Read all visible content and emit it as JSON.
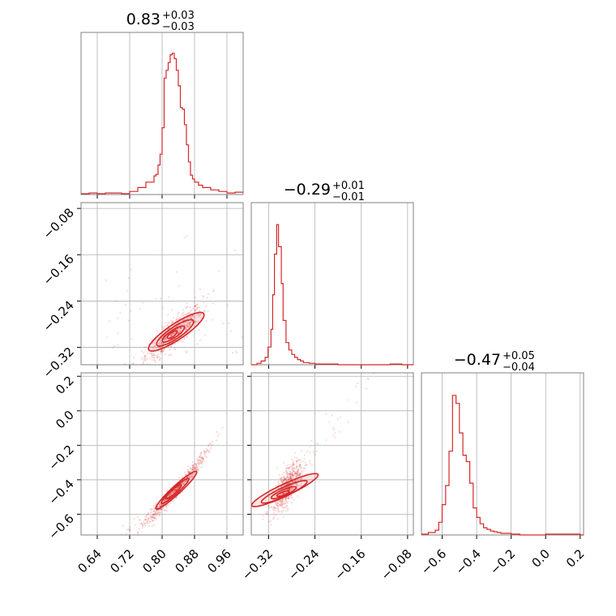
{
  "chart_data": {
    "type": "corner",
    "colors": {
      "series": "#d62728",
      "grid": "#b0b0b0",
      "frame": "#808080"
    },
    "grid": true,
    "titles": [
      {
        "value": "0.83",
        "plus": "+0.03",
        "minus": "−0.03"
      },
      {
        "value": "−0.29",
        "plus": "+0.01",
        "minus": "−0.01"
      },
      {
        "value": "−0.47",
        "plus": "+0.05",
        "minus": "−0.04"
      }
    ],
    "parameters": [
      {
        "range": [
          0.6,
          1.0
        ],
        "ticks": [
          0.64,
          0.72,
          0.8,
          0.88,
          0.96
        ],
        "tick_labels": [
          "0.64",
          "0.72",
          "0.80",
          "0.88",
          "0.96"
        ],
        "histogram": {
          "bin_edges": [
            0.6,
            0.62,
            0.64,
            0.66,
            0.68,
            0.7,
            0.72,
            0.74,
            0.76,
            0.78,
            0.785,
            0.79,
            0.795,
            0.8,
            0.805,
            0.81,
            0.815,
            0.82,
            0.825,
            0.83,
            0.835,
            0.84,
            0.845,
            0.85,
            0.855,
            0.86,
            0.865,
            0.87,
            0.875,
            0.88,
            0.89,
            0.9,
            0.92,
            0.94,
            0.96,
            0.98,
            1.0
          ],
          "counts": [
            1,
            2,
            1,
            2,
            2,
            1,
            4,
            9,
            16,
            24,
            26,
            38,
            52,
            86,
            150,
            160,
            170,
            180,
            182,
            175,
            160,
            140,
            112,
            110,
            90,
            64,
            42,
            25,
            20,
            16,
            12,
            9,
            6,
            4,
            2,
            3
          ],
          "ymax": 190
        }
      },
      {
        "range": [
          -0.35,
          -0.07
        ],
        "ticks": [
          -0.32,
          -0.24,
          -0.16,
          -0.08
        ],
        "tick_labels": [
          "−0.32",
          "−0.24",
          "−0.16",
          "−0.08"
        ],
        "histogram": {
          "bin_edges": [
            -0.35,
            -0.34,
            -0.333,
            -0.326,
            -0.321,
            -0.316,
            -0.313,
            -0.31,
            -0.306,
            -0.303,
            -0.298,
            -0.295,
            -0.29,
            -0.285,
            -0.28,
            -0.275,
            -0.27,
            -0.265,
            -0.26,
            -0.25,
            -0.24,
            -0.23,
            -0.22,
            -0.2,
            -0.17,
            -0.14,
            -0.11,
            -0.09,
            -0.07
          ],
          "counts": [
            0,
            2,
            5,
            10,
            24,
            48,
            95,
            150,
            190,
            160,
            110,
            60,
            30,
            20,
            14,
            10,
            7,
            5,
            3,
            2,
            1,
            1,
            1,
            0,
            0,
            0,
            1,
            0
          ],
          "ymax": 200
        }
      },
      {
        "range": [
          -0.72,
          0.22
        ],
        "ticks": [
          -0.6,
          -0.4,
          -0.2,
          0.0,
          0.2
        ],
        "tick_labels": [
          "−0.6",
          "−0.4",
          "−0.2",
          "0.0",
          "0.2"
        ],
        "histogram": {
          "bin_edges": [
            -0.72,
            -0.68,
            -0.64,
            -0.62,
            -0.6,
            -0.58,
            -0.56,
            -0.54,
            -0.52,
            -0.5,
            -0.48,
            -0.46,
            -0.44,
            -0.42,
            -0.4,
            -0.38,
            -0.36,
            -0.34,
            -0.32,
            -0.3,
            -0.28,
            -0.26,
            -0.24,
            -0.2,
            -0.15,
            0.0,
            0.2,
            0.22
          ],
          "counts": [
            1,
            3,
            6,
            16,
            38,
            62,
            105,
            175,
            165,
            128,
            100,
            92,
            65,
            34,
            22,
            14,
            9,
            7,
            5,
            4,
            3,
            2,
            2,
            1,
            0,
            1,
            0
          ],
          "ymax": 185
        }
      }
    ]
  }
}
